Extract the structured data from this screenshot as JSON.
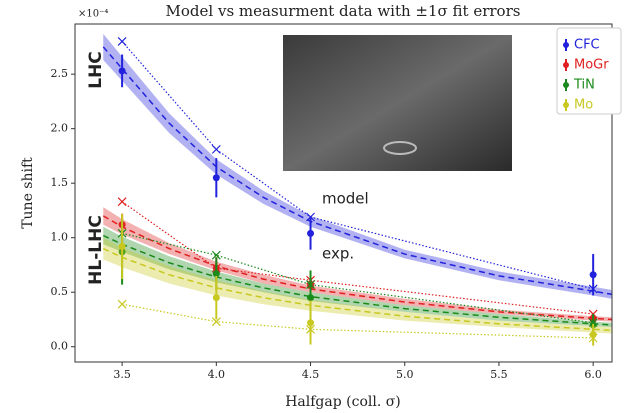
{
  "chart_data": {
    "type": "errorbar",
    "title": "Model vs measurment data with ±1σ fit errors",
    "x_label": "Halfgap (coll. σ)",
    "y_label": "Tune shift",
    "y_multiplier": "×10⁻⁴",
    "annotations": [
      "LHC",
      "HL-LHC",
      "model",
      "exp."
    ],
    "xlim": [
      3.25,
      6.1
    ],
    "ylim": [
      -0.14,
      2.96
    ],
    "xticks": [
      3.5,
      {
        "value": 4,
        "label": "4.0"
      },
      4.5,
      {
        "value": 5,
        "label": "5.0"
      },
      5.5,
      {
        "value": 6,
        "label": "6.0"
      }
    ],
    "yticks": [
      {
        "value": 0,
        "label": "0.0"
      },
      0.5,
      {
        "value": 1,
        "label": "1.0"
      },
      1.5,
      {
        "value": 2,
        "label": "2.0"
      },
      2.5
    ],
    "x": [
      3.5,
      4,
      4.5,
      6
    ],
    "fit_x": [
      3.4,
      3.5,
      3.75,
      4,
      4.25,
      4.5,
      5,
      5.5,
      6,
      6.1
    ],
    "series": [
      {
        "name": "CFC",
        "color": "#2222dd",
        "values": [
          2.53,
          1.55,
          1.04,
          0.66
        ],
        "errors": [
          0.15,
          0.18,
          0.15,
          0.19
        ],
        "model": [
          2.8,
          1.81,
          1.19,
          0.53
        ],
        "fit": [
          2.75,
          2.55,
          2.05,
          1.65,
          1.37,
          1.15,
          0.85,
          0.65,
          0.51,
          0.48
        ],
        "fit_err": [
          0.12,
          0.11,
          0.09,
          0.07,
          0.06,
          0.05,
          0.04,
          0.04,
          0.04,
          0.04
        ]
      },
      {
        "name": "MoGr",
        "color": "#e02020",
        "values": [
          1.12,
          0.72,
          0.56,
          0.25
        ],
        "errors": [
          0.1,
          0.1,
          0.05,
          0.05
        ],
        "model": [
          1.33,
          0.72,
          0.61,
          0.3
        ],
        "fit": [
          1.2,
          1.1,
          0.9,
          0.74,
          0.62,
          0.53,
          0.41,
          0.32,
          0.26,
          0.25
        ],
        "fit_err": [
          0.08,
          0.07,
          0.05,
          0.04,
          0.04,
          0.03,
          0.03,
          0.02,
          0.02,
          0.02
        ]
      },
      {
        "name": "TiN",
        "color": "#1a8a1a",
        "values": [
          0.87,
          0.67,
          0.45,
          0.2
        ],
        "errors": [
          0.3,
          0.15,
          0.25,
          0.1
        ],
        "model": [
          1.04,
          0.84,
          0.57,
          0.22
        ],
        "fit": [
          1.02,
          0.94,
          0.77,
          0.64,
          0.54,
          0.46,
          0.35,
          0.27,
          0.21,
          0.2
        ],
        "fit_err": [
          0.08,
          0.07,
          0.06,
          0.05,
          0.04,
          0.04,
          0.03,
          0.03,
          0.02,
          0.02
        ]
      },
      {
        "name": "Mo",
        "color": "#c8c820",
        "values": [
          0.92,
          0.45,
          0.22,
          0.11
        ],
        "errors": [
          0.3,
          0.2,
          0.2,
          0.1
        ],
        "model": [
          0.39,
          0.23,
          0.16,
          0.08
        ],
        "fit": [
          0.9,
          0.82,
          0.66,
          0.54,
          0.45,
          0.38,
          0.28,
          0.21,
          0.16,
          0.15
        ],
        "fit_err": [
          0.1,
          0.09,
          0.08,
          0.07,
          0.06,
          0.05,
          0.04,
          0.03,
          0.03,
          0.03
        ]
      }
    ]
  }
}
